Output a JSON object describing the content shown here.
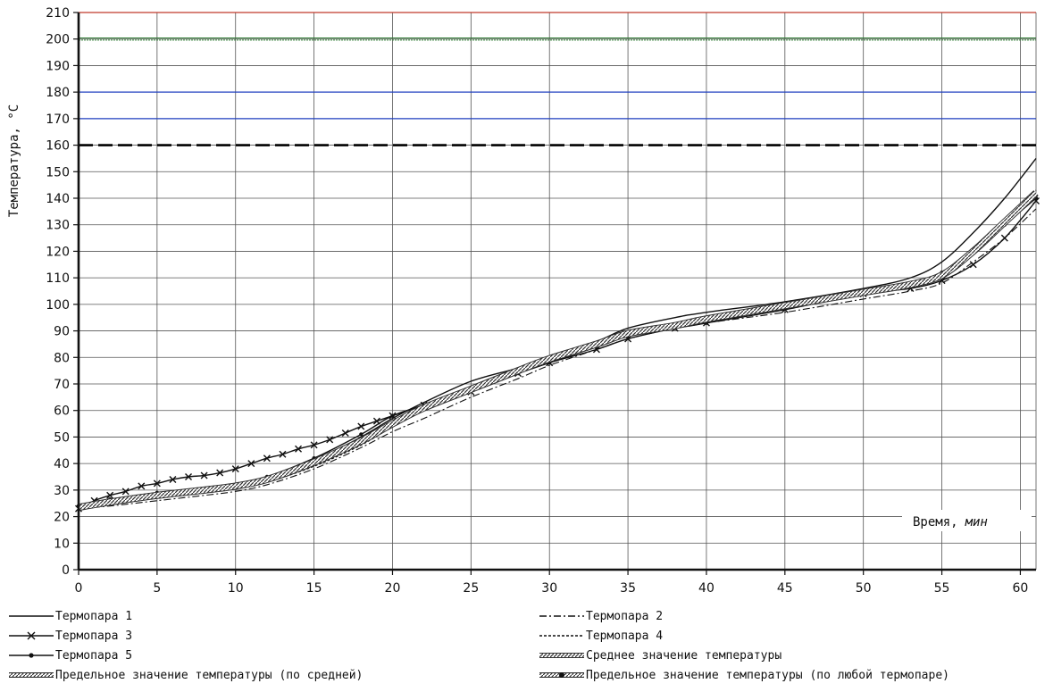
{
  "chart_data": {
    "type": "line",
    "ylabel": "Температура, °С",
    "xlabel_main": "Время,",
    "xlabel_unit": "мин",
    "xlim": [
      0,
      61
    ],
    "ylim": [
      0,
      210
    ],
    "x_ticks": [
      0,
      5,
      10,
      15,
      20,
      25,
      30,
      35,
      40,
      45,
      50,
      55,
      60
    ],
    "y_ticks": [
      0,
      10,
      20,
      30,
      40,
      50,
      60,
      70,
      80,
      90,
      100,
      110,
      120,
      130,
      140,
      150,
      160,
      170,
      180,
      190,
      200,
      210
    ],
    "grid": true,
    "reference_lines": [
      {
        "y": 210,
        "color": "#c0392b",
        "style": "solid"
      },
      {
        "y": 200,
        "color": "#2e7d32",
        "style": "double"
      },
      {
        "y": 180,
        "color": "#1f3fbf",
        "style": "solid"
      },
      {
        "y": 170,
        "color": "#1f3fbf",
        "style": "solid"
      },
      {
        "y": 160,
        "color": "#000000",
        "style": "dashed"
      }
    ],
    "series": [
      {
        "name": "Термопара 1",
        "style": "solid",
        "x": [
          0,
          2,
          5,
          8,
          10,
          12,
          15,
          18,
          20,
          22,
          25,
          28,
          30,
          33,
          35,
          38,
          40,
          45,
          50,
          53,
          55,
          57,
          59,
          61
        ],
        "y": [
          24,
          26,
          28,
          29.5,
          31,
          34,
          41,
          50,
          57,
          63,
          71,
          76,
          80,
          86,
          91,
          95,
          97,
          101,
          106,
          110,
          116,
          127,
          140,
          155
        ]
      },
      {
        "name": "Термопара 2",
        "style": "dashdot",
        "x": [
          0,
          2,
          5,
          8,
          10,
          12,
          15,
          18,
          20,
          22,
          25,
          28,
          30,
          33,
          35,
          38,
          40,
          45,
          50,
          53,
          55,
          57,
          59,
          61
        ],
        "y": [
          23,
          24,
          26,
          28,
          29.5,
          32,
          38,
          46,
          52,
          57,
          65,
          72,
          77,
          83,
          87,
          91,
          93,
          97,
          102,
          105,
          108,
          116,
          125,
          136
        ]
      },
      {
        "name": "Термопара 3",
        "style": "cross",
        "x": [
          0,
          1,
          2,
          3,
          4,
          5,
          6,
          7,
          8,
          9,
          10,
          11,
          12,
          13,
          14,
          15,
          16,
          17,
          18,
          19,
          20,
          22,
          25,
          28,
          30,
          33,
          35,
          38,
          40,
          45,
          50,
          53,
          55,
          57,
          59,
          61
        ],
        "y": [
          23,
          26,
          28,
          29.5,
          31.5,
          32.5,
          34,
          35,
          35.5,
          36.5,
          38,
          40,
          42,
          43.5,
          45.5,
          47,
          49,
          51.5,
          54,
          56,
          58,
          62,
          67,
          74,
          78,
          83,
          87,
          91,
          93,
          98,
          104,
          106,
          109,
          115,
          125,
          139
        ]
      },
      {
        "name": "Термопара 4",
        "style": "dotted",
        "x": [
          0,
          2,
          5,
          8,
          10,
          12,
          15,
          18,
          20,
          22,
          25,
          28,
          30,
          33,
          35,
          38,
          40,
          45,
          50,
          53,
          55,
          57,
          59,
          61
        ],
        "y": [
          23,
          25,
          27,
          29,
          30.5,
          33,
          39,
          47,
          54,
          60,
          68,
          75,
          80,
          86,
          89,
          93,
          95,
          100,
          105,
          108,
          112,
          120,
          131,
          143
        ]
      },
      {
        "name": "Термопара 5",
        "style": "dot",
        "x": [
          0,
          2,
          5,
          8,
          10,
          12,
          15,
          18,
          20,
          22,
          25,
          28,
          30,
          33,
          35,
          38,
          40,
          45,
          50,
          53,
          55,
          57,
          59,
          61
        ],
        "y": [
          24,
          26.5,
          29,
          30.5,
          32,
          35,
          42,
          51,
          58,
          62,
          68,
          74,
          78,
          84,
          88,
          91,
          93,
          99,
          105,
          108,
          112,
          120,
          130,
          140
        ]
      },
      {
        "name": "Среднее значение температуры",
        "style": "hatched",
        "x": [
          0,
          2,
          5,
          8,
          10,
          12,
          15,
          18,
          20,
          22,
          25,
          28,
          30,
          33,
          35,
          38,
          40,
          45,
          50,
          53,
          55,
          57,
          59,
          61
        ],
        "y": [
          23.5,
          25.5,
          28,
          30,
          31.5,
          34,
          40.5,
          48.5,
          55,
          61,
          68,
          75,
          79.5,
          85,
          89,
          92,
          94.5,
          99.5,
          104.5,
          107.5,
          111,
          120,
          131,
          142
        ]
      }
    ],
    "legend": [
      "Термопара 1",
      "Термопара 2",
      "Термопара 3",
      "Термопара 4",
      "Термопара 5",
      "Среднее значение температуры",
      "Предельное значение температуры (по средней)",
      "Предельное значение температуры (по любой термопаре)"
    ]
  }
}
